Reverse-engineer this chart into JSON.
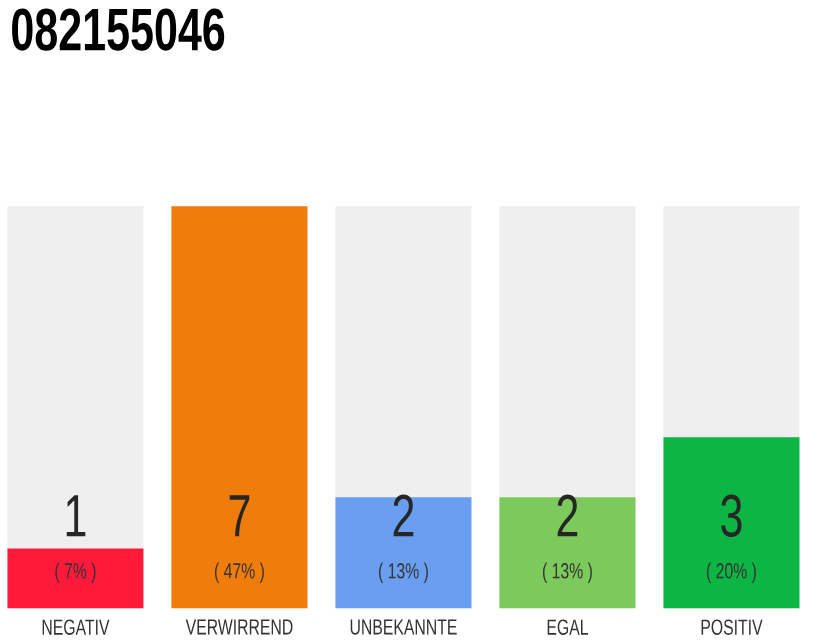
{
  "chart_data": {
    "type": "bar",
    "title": "082155046",
    "categories": [
      "NEGATIV",
      "VERWIRREND",
      "UNBEKANNTE",
      "EGAL",
      "POSITIV"
    ],
    "values": [
      7,
      47,
      13,
      13,
      20
    ],
    "colors": [
      "#ff1a3c",
      "#f07c0c",
      "#6a9ef0",
      "#7cc95c",
      "#0cb544"
    ],
    "value_labels": [
      "( 7% )",
      "( 47% )",
      "( 13% )",
      "( 13% )",
      "( 20% )"
    ],
    "annotations": [
      "1",
      "7",
      "2",
      "2",
      "3"
    ]
  }
}
